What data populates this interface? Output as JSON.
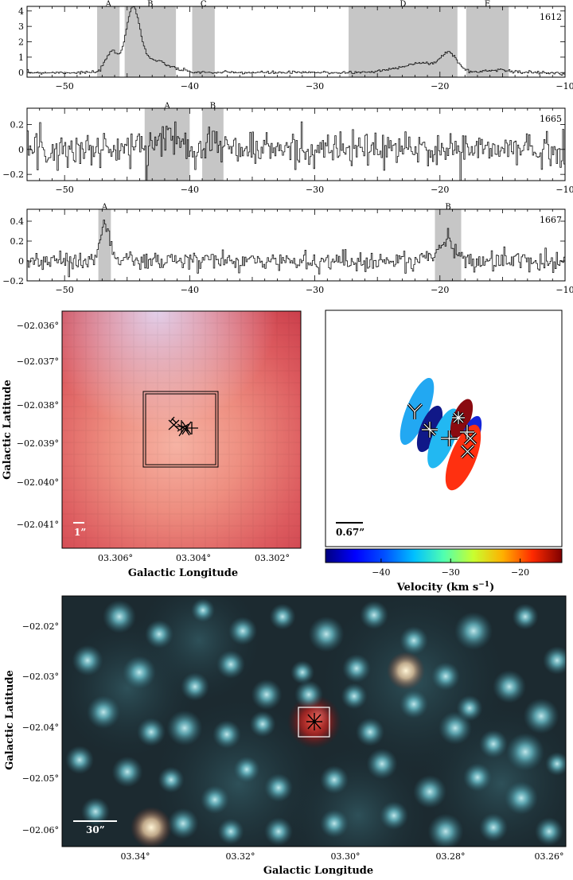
{
  "spectra": [
    {
      "name": "1612",
      "label": "1612",
      "x_range": [
        -53,
        -10
      ],
      "y_range": [
        -0.3,
        4.3
      ],
      "y_ticks": [
        0,
        1,
        2,
        3,
        4
      ],
      "y_tick_labels": [
        "0",
        "1",
        "2",
        "3",
        "4"
      ],
      "x_ticks": [
        -50,
        -40,
        -30,
        -20,
        -10
      ],
      "x_tick_labels": [
        "−50",
        "−40",
        "−30",
        "−20",
        "−10"
      ],
      "regions": [
        {
          "label": "A",
          "x0": -47.4,
          "x1": -45.6
        },
        {
          "label": "B",
          "x0": -45.2,
          "x1": -41.1
        },
        {
          "label": "C",
          "x0": -39.8,
          "x1": -38.0
        },
        {
          "label": "D",
          "x0": -27.3,
          "x1": -18.6
        },
        {
          "label": "E",
          "x0": -17.9,
          "x1": -14.5
        }
      ],
      "noise": 0.05,
      "peaks": [
        {
          "center": -46.3,
          "amp": 1.3,
          "width": 0.45
        },
        {
          "center": -44.6,
          "amp": 3.8,
          "width": 0.55
        },
        {
          "center": -43.2,
          "amp": 0.8,
          "width": 1.4
        },
        {
          "center": -21.5,
          "amp": 0.6,
          "width": 1.8
        },
        {
          "center": -19.3,
          "amp": 1.05,
          "width": 0.6
        },
        {
          "center": -15.3,
          "amp": 0.2,
          "width": 0.8
        }
      ]
    },
    {
      "name": "1665",
      "label": "1665",
      "x_range": [
        -53,
        -10
      ],
      "y_range": [
        -0.25,
        0.33
      ],
      "y_ticks": [
        -0.2,
        0,
        0.2
      ],
      "y_tick_labels": [
        "−0.2",
        "0",
        "0.2"
      ],
      "x_ticks": [
        -50,
        -40,
        -30,
        -20,
        -10
      ],
      "x_tick_labels": [
        "−50",
        "−40",
        "−30",
        "−20",
        "−10"
      ],
      "regions": [
        {
          "label": "A",
          "x0": -43.6,
          "x1": -40.0
        },
        {
          "label": "B",
          "x0": -39.0,
          "x1": -37.3
        }
      ],
      "noise": 0.07,
      "peaks": [
        {
          "center": -41.8,
          "amp": 0.1,
          "width": 1.2
        },
        {
          "center": -38.2,
          "amp": 0.07,
          "width": 0.6
        }
      ]
    },
    {
      "name": "1667",
      "label": "1667",
      "x_range": [
        -53,
        -10
      ],
      "y_range": [
        -0.2,
        0.52
      ],
      "y_ticks": [
        -0.2,
        0,
        0.2,
        0.4
      ],
      "y_tick_labels": [
        "−0.2",
        "0",
        "0.2",
        "0.4"
      ],
      "x_ticks": [
        -50,
        -40,
        -30,
        -20,
        -10
      ],
      "x_tick_labels": [
        "−50",
        "−40",
        "−30",
        "−20",
        "−10"
      ],
      "regions": [
        {
          "label": "A",
          "x0": -47.3,
          "x1": -46.3
        },
        {
          "label": "B",
          "x0": -20.4,
          "x1": -18.3
        }
      ],
      "noise": 0.05,
      "peaks": [
        {
          "center": -46.8,
          "amp": 0.42,
          "width": 0.35
        },
        {
          "center": -19.6,
          "amp": 0.2,
          "width": 0.7
        }
      ]
    }
  ],
  "map_small": {
    "ylabel": "Galactic Latitude",
    "xlabel": "Galactic Longitude",
    "y_ticks": [
      "−02.036°",
      "−02.037°",
      "−02.038°",
      "−02.039°",
      "−02.040°",
      "−02.041°"
    ],
    "x_ticks": [
      "03.306°",
      "03.304°",
      "03.302°"
    ],
    "scale_label": "1”"
  },
  "velocity_panel": {
    "scale_label": "0.67”",
    "colorbar_label": "Velocity (km s",
    "colorbar_label_sup": "−1",
    "colorbar_label_end": ")",
    "colorbar_range": [
      -48,
      -14
    ],
    "colorbar_ticks": [
      -40,
      -30,
      -20
    ],
    "colorbar_tick_labels": [
      "−40",
      "−30",
      "−20"
    ],
    "colors": [
      "#00007f",
      "#0000ff",
      "#00a2ff",
      "#37ffc8",
      "#c7ff30",
      "#ffb900",
      "#ff3000",
      "#7f0000"
    ],
    "components": [
      {
        "name": "comp-1",
        "velocity": -33,
        "color": "#22a8f2"
      },
      {
        "name": "comp-2",
        "velocity": -46,
        "color": "#101888"
      },
      {
        "name": "comp-3",
        "velocity": -33,
        "color": "#22b8f2"
      },
      {
        "name": "comp-4",
        "velocity": -16,
        "color": "#8a0a10"
      },
      {
        "name": "comp-5",
        "velocity": -45,
        "color": "#1525d8"
      },
      {
        "name": "comp-6",
        "velocity": -19,
        "color": "#ff3010"
      }
    ]
  },
  "map_large": {
    "ylabel": "Galactic Latitude",
    "xlabel": "Galactic Longitude",
    "y_ticks": [
      "−02.02°",
      "−02.03°",
      "−02.04°",
      "−02.05°",
      "−02.06°"
    ],
    "x_ticks": [
      "03.34°",
      "03.32°",
      "03.30°",
      "03.28°",
      "03.26°"
    ],
    "scale_label": "30”"
  },
  "chart_data": [
    {
      "type": "line",
      "title": "",
      "series": [
        {
          "label": "1612"
        }
      ],
      "xlim": [
        -53,
        -10
      ],
      "ylim": [
        -0.3,
        4.3
      ],
      "highlighted_ranges": [
        {
          "label": "A",
          "x": [
            -47.4,
            -45.6
          ]
        },
        {
          "label": "B",
          "x": [
            -45.2,
            -41.1
          ]
        },
        {
          "label": "C",
          "x": [
            -39.8,
            -38.0
          ]
        },
        {
          "label": "D",
          "x": [
            -27.3,
            -18.6
          ]
        },
        {
          "label": "E",
          "x": [
            -17.9,
            -14.5
          ]
        }
      ]
    },
    {
      "type": "line",
      "series": [
        {
          "label": "1665"
        }
      ],
      "xlim": [
        -53,
        -10
      ],
      "ylim": [
        -0.25,
        0.33
      ],
      "highlighted_ranges": [
        {
          "label": "A",
          "x": [
            -43.6,
            -40.0
          ]
        },
        {
          "label": "B",
          "x": [
            -39.0,
            -37.3
          ]
        }
      ]
    },
    {
      "type": "line",
      "series": [
        {
          "label": "1667"
        }
      ],
      "xlim": [
        -53,
        -10
      ],
      "ylim": [
        -0.2,
        0.52
      ],
      "highlighted_ranges": [
        {
          "label": "A",
          "x": [
            -47.3,
            -46.3
          ]
        },
        {
          "label": "B",
          "x": [
            -20.4,
            -18.3
          ]
        }
      ]
    }
  ]
}
